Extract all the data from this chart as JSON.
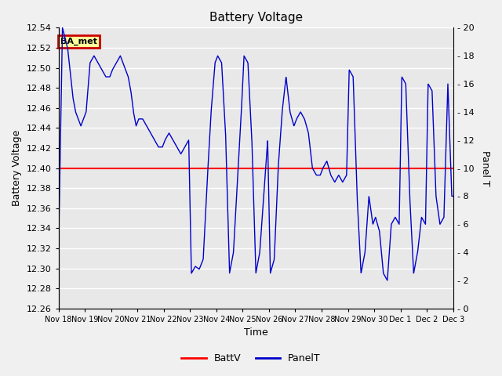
{
  "title": "Battery Voltage",
  "xlabel": "Time",
  "ylabel_left": "Battery Voltage",
  "ylabel_right": "Panel T",
  "ylim_left": [
    12.26,
    12.54
  ],
  "ylim_right": [
    0,
    20
  ],
  "yticks_left": [
    12.26,
    12.28,
    12.3,
    12.32,
    12.34,
    12.36,
    12.38,
    12.4,
    12.42,
    12.44,
    12.46,
    12.48,
    12.5,
    12.52,
    12.54
  ],
  "yticks_right": [
    0,
    2,
    4,
    6,
    8,
    10,
    12,
    14,
    16,
    18,
    20
  ],
  "battv_value": 12.4,
  "battv_color": "#ff0000",
  "panelt_color": "#0000cc",
  "bg_color": "#e8e8e8",
  "fig_bg_color": "#f0f0f0",
  "grid_color": "#ffffff",
  "label_box_color": "#cc0000",
  "label_box_text": "BA_met",
  "label_box_bg": "#ffff99",
  "legend_battv": "BattV",
  "legend_panelt": "PanelT",
  "x_tick_labels": [
    "Nov 18",
    "Nov 19",
    "Nov 20",
    "Nov 21",
    "Nov 22",
    "Nov 23",
    "Nov 24",
    "Nov 25",
    "Nov 26",
    "Nov 27",
    "Nov 28",
    "Nov 29",
    "Nov 30",
    "Dec 1",
    "Dec 2",
    "Dec 3"
  ],
  "panelt_knots_x": [
    0.0,
    0.15,
    0.35,
    0.55,
    0.65,
    0.75,
    0.85,
    0.95,
    1.05,
    1.2,
    1.35,
    1.5,
    1.65,
    1.8,
    1.95,
    2.05,
    2.2,
    2.35,
    2.45,
    2.55,
    2.65,
    2.75,
    2.85,
    2.95,
    3.05,
    3.2,
    3.35,
    3.5,
    3.65,
    3.8,
    3.95,
    4.05,
    4.2,
    4.35,
    4.5,
    4.65,
    4.8,
    4.95,
    5.05,
    5.2,
    5.35,
    5.5,
    5.65,
    5.8,
    5.95,
    6.05,
    6.2,
    6.35,
    6.5,
    6.65,
    6.8,
    6.95,
    7.05,
    7.2,
    7.35,
    7.5,
    7.65,
    7.8,
    7.95,
    8.05,
    8.2,
    8.35,
    8.5,
    8.65,
    8.8,
    8.95,
    9.05,
    9.2,
    9.35,
    9.5,
    9.65,
    9.8,
    9.95,
    10.05,
    10.2,
    10.35,
    10.5,
    10.65,
    10.8,
    10.95,
    11.05,
    11.2,
    11.35,
    11.5,
    11.65,
    11.8,
    11.95,
    12.05,
    12.2,
    12.35,
    12.5,
    12.65,
    12.8,
    12.95,
    13.05,
    13.2,
    13.35,
    13.5,
    13.65,
    13.8,
    13.95,
    14.05,
    14.2,
    14.35,
    14.5,
    14.65,
    14.8,
    14.95,
    15.0
  ],
  "panelt_knots_y": [
    4.0,
    20.0,
    18.5,
    15.0,
    14.0,
    13.5,
    13.0,
    13.5,
    14.0,
    17.5,
    18.0,
    17.5,
    17.0,
    16.5,
    16.5,
    17.0,
    17.5,
    18.0,
    17.5,
    17.0,
    16.5,
    15.5,
    14.0,
    13.0,
    13.5,
    13.5,
    13.0,
    12.5,
    12.0,
    11.5,
    11.5,
    12.0,
    12.5,
    12.0,
    11.5,
    11.0,
    11.5,
    12.0,
    2.5,
    3.0,
    2.8,
    3.5,
    9.0,
    14.0,
    17.5,
    18.0,
    17.5,
    12.5,
    2.5,
    4.0,
    9.0,
    14.0,
    18.0,
    17.5,
    12.0,
    2.5,
    4.0,
    8.0,
    12.0,
    2.5,
    3.5,
    10.0,
    14.0,
    16.5,
    14.0,
    13.0,
    13.5,
    14.0,
    13.5,
    12.5,
    10.0,
    9.5,
    9.5,
    10.0,
    10.5,
    9.5,
    9.0,
    9.5,
    9.0,
    9.5,
    17.0,
    16.5,
    8.0,
    2.5,
    4.0,
    8.0,
    6.0,
    6.5,
    5.5,
    2.5,
    2.0,
    6.0,
    6.5,
    6.0,
    16.5,
    16.0,
    8.0,
    2.5,
    4.0,
    6.5,
    6.0,
    16.0,
    15.5,
    8.0,
    6.0,
    6.5,
    16.0,
    8.0,
    8.0
  ]
}
